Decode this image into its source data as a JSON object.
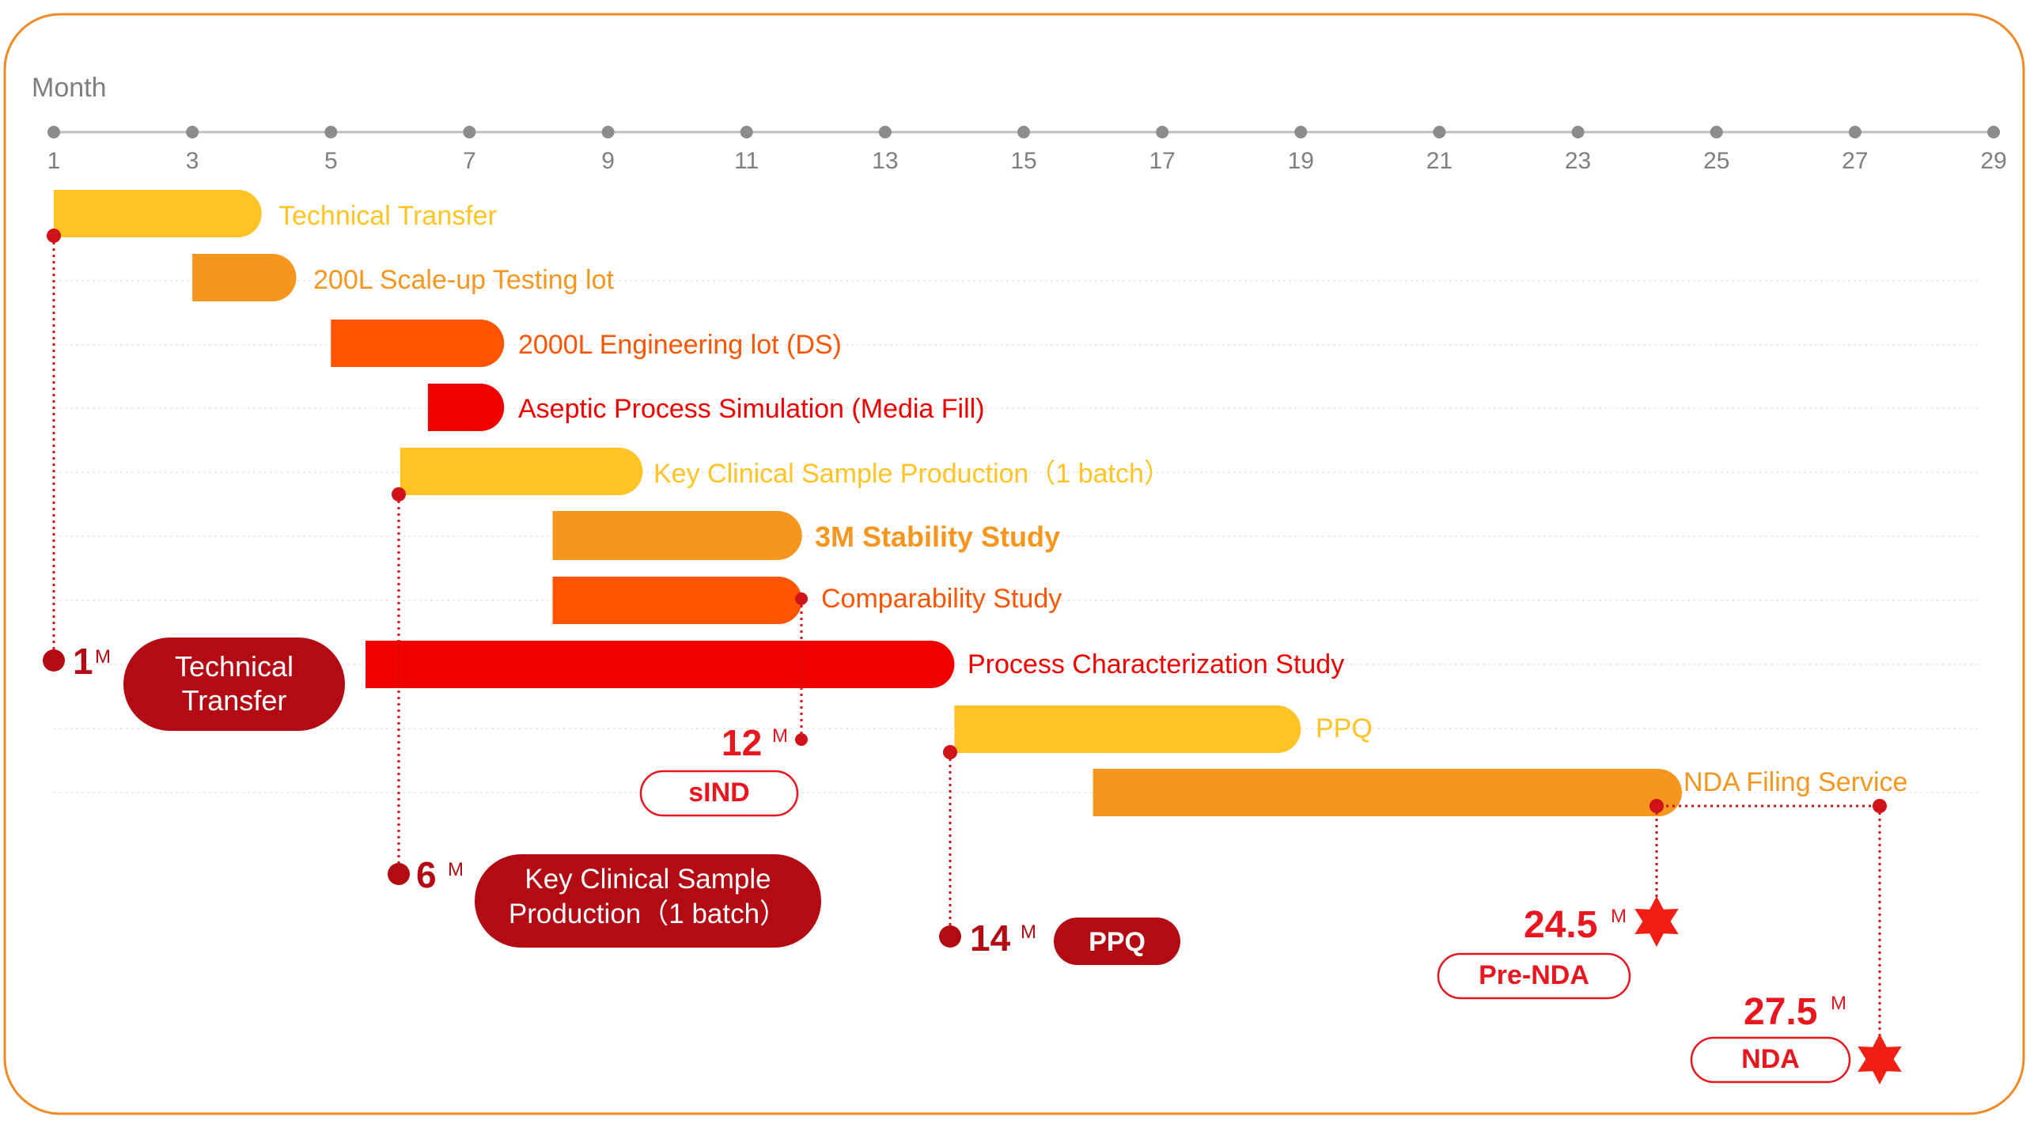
{
  "chart_data": {
    "type": "gantt",
    "axis_title": "Month",
    "x_ticks": [
      1,
      3,
      5,
      7,
      9,
      11,
      13,
      15,
      17,
      19,
      21,
      23,
      25,
      27,
      29
    ],
    "xlim": [
      1,
      29
    ],
    "tasks": [
      {
        "label": "Technical Transfer",
        "start": 1,
        "end": 4,
        "color": "#FFC424"
      },
      {
        "label": "200L Scale-up Testing lot",
        "start": 3,
        "end": 4.5,
        "color": "#F7961E"
      },
      {
        "label": "2000L Engineering lot (DS)",
        "start": 5,
        "end": 7.5,
        "color": "#FF5500"
      },
      {
        "label": "Aseptic Process Simulation (Media Fill)",
        "start": 6.4,
        "end": 7.5,
        "color": "#F20000"
      },
      {
        "label": "Key Clinical Sample Production（1 batch）",
        "start": 6,
        "end": 9.5,
        "color": "#FFC424"
      },
      {
        "label": "3M Stability Study",
        "start": 8.2,
        "end": 11.8,
        "color": "#F7961E"
      },
      {
        "label": "Comparability Study",
        "start": 8.2,
        "end": 11.8,
        "color": "#FF5500"
      },
      {
        "label": "Process Characterization Study",
        "start": 5.5,
        "end": 14,
        "color": "#F20000"
      },
      {
        "label": "PPQ",
        "start": 14,
        "end": 19,
        "color": "#FFC424"
      },
      {
        "label": "NDA Filing Service",
        "start": 16,
        "end": 24.5,
        "color": "#F7961E"
      }
    ],
    "milestones": [
      {
        "value": "1",
        "unit": "M",
        "label": "Technical Transfer",
        "month": 1
      },
      {
        "value": "12",
        "unit": "M",
        "label": "sIND",
        "month": 12
      },
      {
        "value": "6",
        "unit": "M",
        "label": "Key Clinical Sample Production（1 batch）",
        "month": 6
      },
      {
        "value": "14",
        "unit": "M",
        "label": "PPQ",
        "month": 14
      },
      {
        "value": "24.5",
        "unit": "M",
        "label": "Pre-NDA",
        "month": 24.5
      },
      {
        "value": "27.5",
        "unit": "M",
        "label": "NDA",
        "month": 27.5
      }
    ],
    "colors": {
      "border": "#F08A24",
      "axis": "#8C8C8C",
      "milestone_dark": "#B30A14",
      "milestone_red": "#E8161E",
      "star": "#F01E14"
    }
  }
}
